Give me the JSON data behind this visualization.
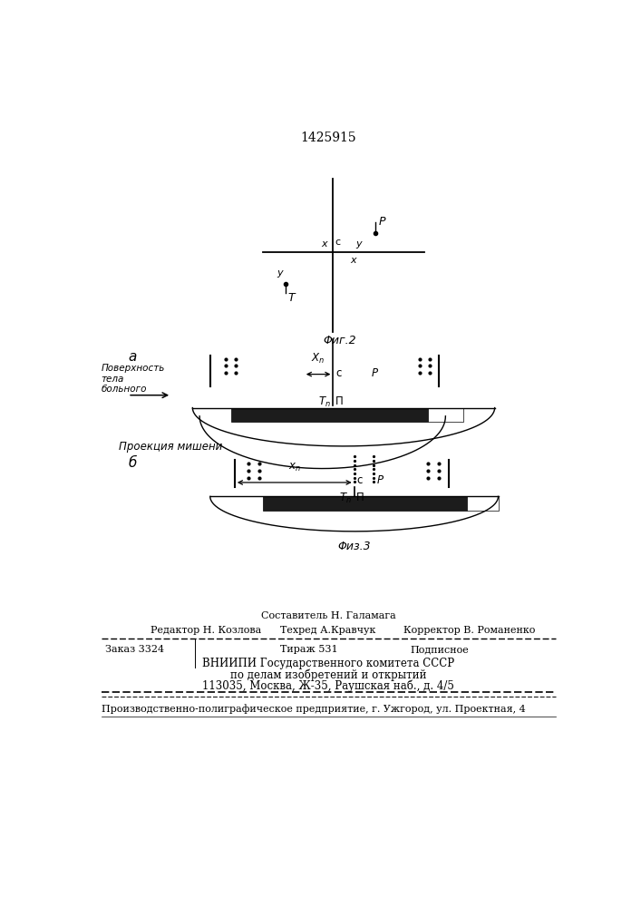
{
  "patent_number": "1425915",
  "fig2_label": "Φиг.2",
  "fig3_label": "Φиз.3",
  "label_a": "a",
  "label_b": "б",
  "surface_label": "Поверхность\nтела\nбольного",
  "projection_label": "Проекция мишени",
  "staff_top": "Составитель Н. Галамага",
  "staff_editor": "Редактор Н. Козлова",
  "staff_tech": "Техред А.Кравчук",
  "staff_corr": "Корректор В. Романенко",
  "order_text": "Заказ 3324",
  "tirazh_text": "Тираж 531",
  "podp_text": "Подписное",
  "vniip1": "ВНИИПИ Государственного комитета СССР",
  "vniip2": "по делам изобретений и открытий",
  "vniip3": "113035, Москва, Ж-35, Раушская наб., д. 4/5",
  "production": "Производственно-полиграфическое предприятие, г. Ужгород, ул. Проектная, 4",
  "bg_color": "#ffffff"
}
